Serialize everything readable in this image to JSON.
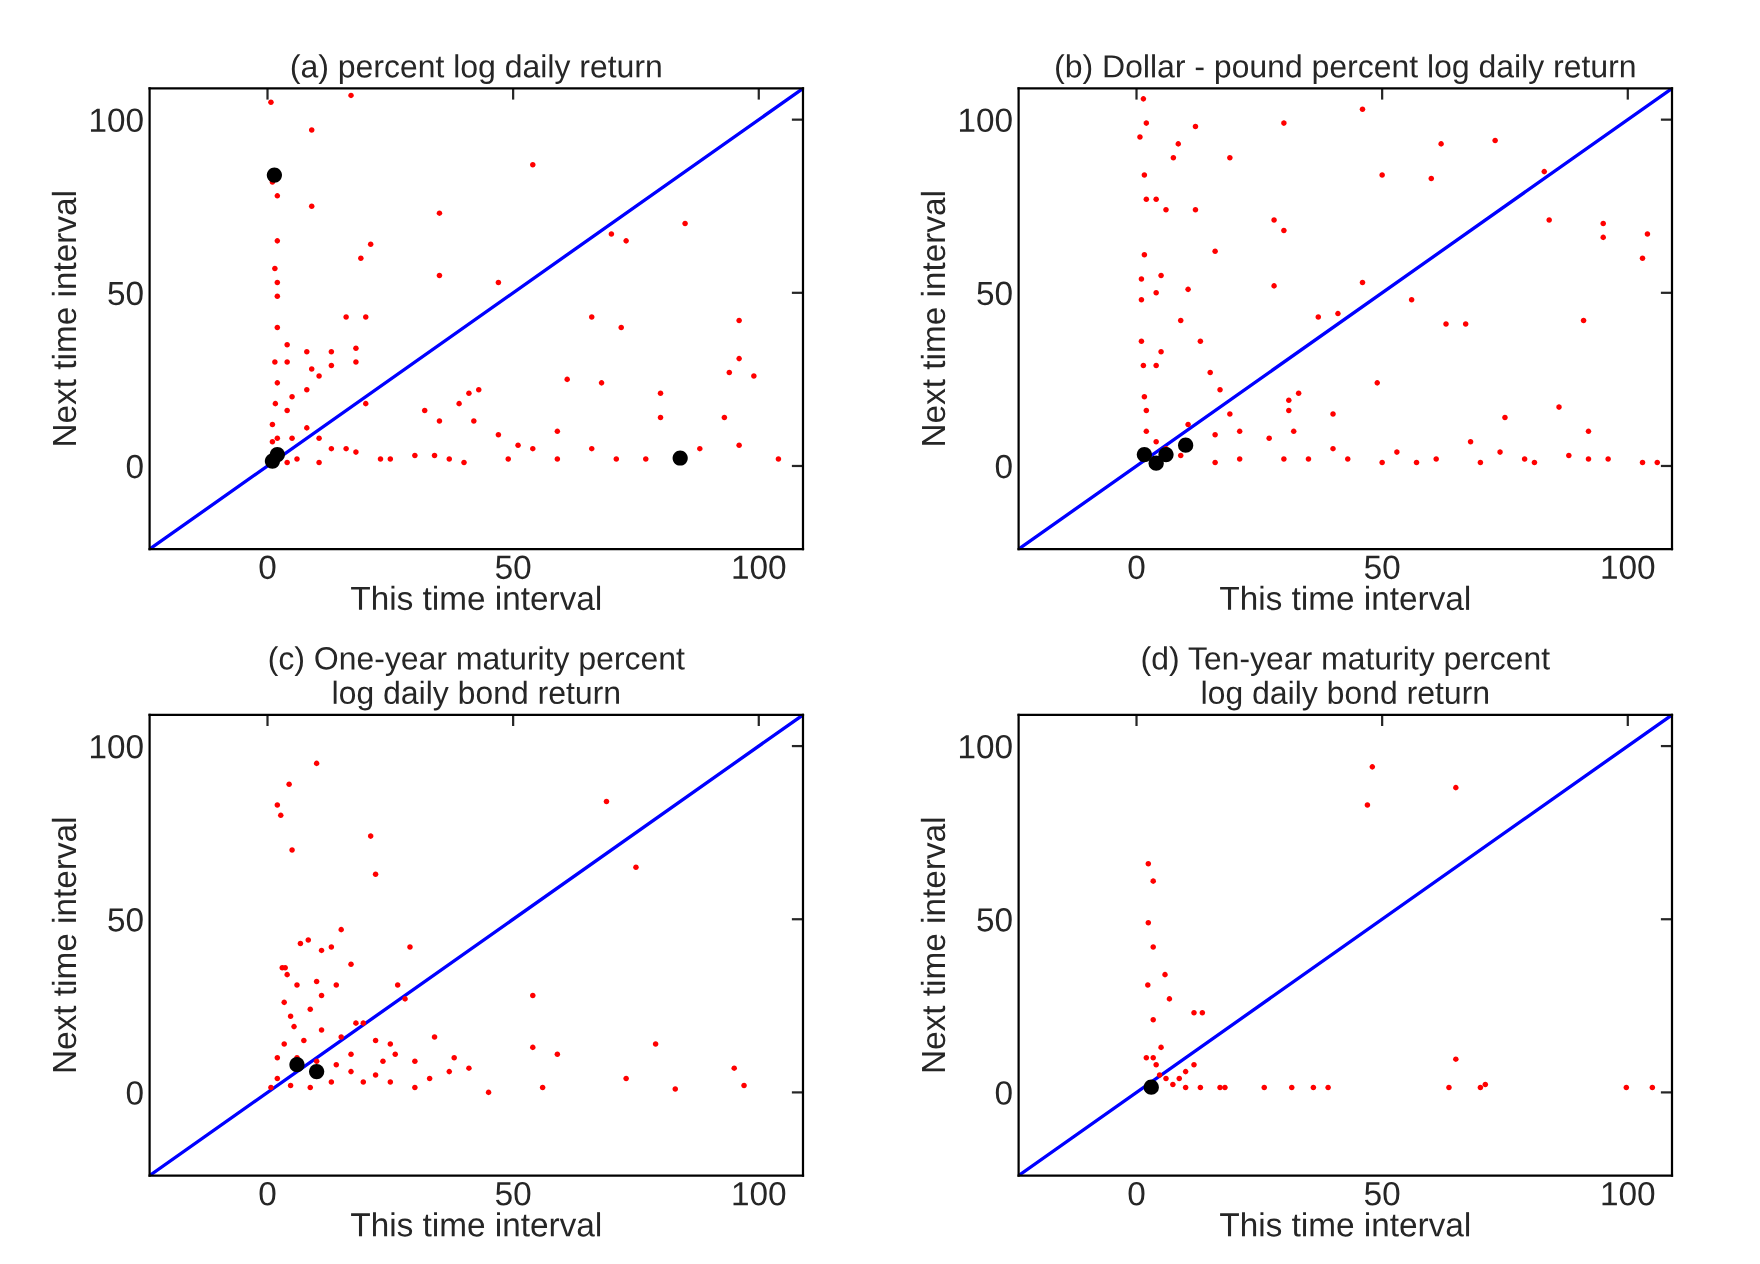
{
  "chart_data": [
    {
      "type": "scatter",
      "title": "(a) percent log daily return",
      "xlabel": "This time interval",
      "ylabel": "Next time interval",
      "xlim": [
        -24,
        109
      ],
      "ylim": [
        -24,
        109
      ],
      "xticks": [
        0,
        50,
        100
      ],
      "yticks": [
        0,
        50,
        100
      ],
      "grid": false,
      "series": [
        {
          "color": "#ff0000",
          "marker": "circle",
          "x": [
            0.7,
            17,
            9,
            54,
            9,
            35,
            85,
            73,
            70,
            21,
            19,
            35,
            47,
            1.5,
            2,
            2,
            1,
            16,
            20,
            66,
            72,
            96,
            96,
            94,
            99,
            68,
            61,
            80,
            80,
            93,
            96,
            104,
            88,
            77,
            71,
            66,
            59,
            59,
            54,
            51,
            47,
            43,
            41,
            39,
            42,
            35,
            32,
            20,
            18,
            18,
            13,
            8,
            4,
            4,
            2,
            2,
            1.5,
            2,
            1.6,
            1,
            2,
            5,
            8,
            10.5,
            13,
            16,
            18,
            23,
            25,
            30,
            34,
            37,
            40,
            49,
            10.5,
            6,
            4,
            1,
            4,
            5,
            8,
            10.5,
            13,
            2,
            9
          ],
          "values": [
            105,
            107,
            97,
            87,
            75,
            73,
            70,
            65,
            67,
            64,
            60,
            55,
            53,
            57,
            65,
            78,
            82,
            43,
            43,
            43,
            40,
            42,
            31,
            27,
            26,
            24,
            25,
            21,
            14,
            14,
            6,
            2,
            5,
            2,
            2,
            5,
            10,
            2,
            5,
            6,
            9,
            22,
            21,
            18,
            13,
            13,
            16,
            18,
            30,
            34,
            33,
            33,
            30,
            35,
            40,
            49,
            30,
            24,
            18,
            12,
            8,
            8,
            11,
            8,
            5,
            5,
            4,
            2,
            2,
            3,
            3,
            2,
            1,
            2,
            1,
            2,
            1,
            7,
            16,
            20,
            22,
            26,
            29,
            53,
            28
          ]
        },
        {
          "color": "#000000",
          "marker": "circle",
          "x": [
            1.4,
            84,
            1,
            2
          ],
          "values": [
            84,
            2.3,
            1.4,
            3.3
          ]
        },
        {
          "type": "line",
          "color": "#0000ff",
          "x": [
            -24,
            109
          ],
          "values": [
            -24,
            109
          ]
        }
      ]
    },
    {
      "type": "scatter",
      "title": "(b) Dollar - pound percent log daily return",
      "xlabel": "This time interval",
      "ylabel": "Next time interval",
      "xlim": [
        -24,
        109
      ],
      "ylim": [
        -24,
        109
      ],
      "xticks": [
        0,
        50,
        100
      ],
      "yticks": [
        0,
        50,
        100
      ],
      "grid": false,
      "series": [
        {
          "color": "#ff0000",
          "marker": "circle",
          "x": [
            1.4,
            46,
            30,
            2,
            12,
            0.7,
            8.5,
            62,
            73,
            19,
            7.5,
            50,
            60,
            83,
            1.6,
            2,
            4,
            12,
            6,
            84,
            95,
            95,
            104,
            103,
            28,
            30,
            16,
            1.6,
            1,
            5,
            28,
            46,
            10.5,
            56,
            1,
            4,
            9,
            37,
            41,
            63,
            67,
            91,
            13,
            1,
            5,
            1.4,
            4,
            15,
            17,
            49,
            31,
            33,
            31,
            32,
            40,
            86,
            75,
            92,
            19,
            16,
            21,
            27,
            30,
            35,
            40,
            43,
            50,
            53,
            57,
            61,
            68,
            70,
            74,
            79,
            81,
            88,
            92,
            96,
            103,
            106,
            21,
            16,
            2,
            2,
            4,
            6,
            9,
            1.6,
            10.5
          ],
          "values": [
            106,
            103,
            99,
            99,
            98,
            95,
            93,
            93,
            94,
            89,
            89,
            84,
            83,
            85,
            84,
            77,
            77,
            74,
            74,
            71,
            70,
            66,
            67,
            60,
            71,
            68,
            62,
            61,
            54,
            55,
            52,
            53,
            51,
            48,
            48,
            50,
            42,
            43,
            44,
            41,
            41,
            42,
            36,
            36,
            33,
            29,
            29,
            27,
            22,
            24,
            19,
            21,
            16,
            10,
            15,
            17,
            14,
            10,
            15,
            9,
            10,
            8,
            2,
            2,
            5,
            2,
            1,
            4,
            1,
            2,
            7,
            1,
            4,
            2,
            1,
            3,
            2,
            2,
            1,
            1,
            2,
            1,
            16,
            10,
            7,
            5,
            3,
            20,
            12
          ]
        },
        {
          "color": "#000000",
          "marker": "circle",
          "x": [
            1.6,
            4,
            6,
            10
          ],
          "values": [
            3.3,
            0.8,
            3.3,
            6
          ]
        },
        {
          "type": "line",
          "color": "#0000ff",
          "x": [
            -24,
            109
          ],
          "values": [
            -24,
            109
          ]
        }
      ]
    },
    {
      "type": "scatter",
      "title": "(c) One-year maturity percent\nlog daily bond return",
      "xlabel": "This time interval",
      "ylabel": "Next time interval",
      "xlim": [
        -24,
        109
      ],
      "ylim": [
        -24,
        109
      ],
      "xticks": [
        0,
        50,
        100
      ],
      "yticks": [
        0,
        50,
        100
      ],
      "grid": false,
      "series": [
        {
          "color": "#ff0000",
          "marker": "circle",
          "x": [
            10,
            4.4,
            2,
            2.7,
            5,
            21,
            22,
            69,
            75,
            4,
            3.6,
            6.7,
            8.3,
            15,
            13,
            11,
            29,
            17,
            3,
            6,
            10,
            14,
            26.5,
            28,
            54,
            34,
            18,
            19.5,
            22,
            25,
            26,
            30,
            33,
            30,
            37,
            38,
            41,
            45,
            54,
            59,
            56,
            79,
            73,
            83,
            95,
            97,
            3.4,
            4.7,
            8.7,
            11,
            3.4,
            7.4,
            2,
            6,
            10,
            14,
            17,
            2,
            4.7,
            8.7,
            13,
            22,
            19.5,
            25,
            0.7,
            17,
            23.5,
            15,
            11,
            5.4
          ],
          "values": [
            95,
            89,
            83,
            80,
            70,
            74,
            63,
            84,
            65,
            34,
            36,
            43,
            44,
            47,
            42,
            41,
            42,
            37,
            36,
            31,
            32,
            31,
            31,
            27,
            28,
            16,
            20,
            20,
            15,
            14,
            11,
            9,
            4,
            1.4,
            6,
            10,
            7,
            0,
            13,
            11,
            1.4,
            14,
            4,
            1,
            7,
            2,
            26,
            22,
            24,
            18,
            14,
            15,
            10,
            10,
            9,
            8,
            6,
            4,
            2,
            1.4,
            3,
            5,
            3,
            3,
            1.4,
            11,
            9,
            16,
            28,
            19
          ]
        },
        {
          "color": "#000000",
          "marker": "circle",
          "x": [
            6,
            10
          ],
          "values": [
            8,
            6
          ]
        },
        {
          "type": "line",
          "color": "#0000ff",
          "x": [
            -24,
            109
          ],
          "values": [
            -24,
            109
          ]
        }
      ]
    },
    {
      "type": "scatter",
      "title": "(d) Ten-year maturity percent\nlog daily bond return",
      "xlabel": "This time interval",
      "ylabel": "Next time interval",
      "xlim": [
        -24,
        109
      ],
      "ylim": [
        -24,
        109
      ],
      "xticks": [
        0,
        50,
        100
      ],
      "yticks": [
        0,
        50,
        100
      ],
      "grid": false,
      "series": [
        {
          "color": "#ff0000",
          "marker": "circle",
          "x": [
            48,
            47,
            65,
            2.4,
            3.4,
            2.4,
            3.4,
            2.3,
            5.8,
            6.7,
            3.4,
            11.7,
            13.4,
            5,
            2,
            3.4,
            4,
            11.7,
            10,
            7.4,
            10,
            13,
            17,
            18,
            26,
            31.6,
            36,
            39,
            63.6,
            70,
            71,
            65,
            99.7,
            105,
            4.7,
            6,
            8.7
          ],
          "values": [
            94,
            83,
            88,
            66,
            61,
            49,
            42,
            31,
            34,
            27,
            21,
            23,
            23,
            13,
            10,
            10,
            8,
            8,
            6,
            2.3,
            1.4,
            1.4,
            1.4,
            1.4,
            1.4,
            1.4,
            1.4,
            1.4,
            1.4,
            1.4,
            2.3,
            9.6,
            1.4,
            1.4,
            5,
            4,
            4
          ]
        },
        {
          "color": "#000000",
          "marker": "circle",
          "x": [
            3
          ],
          "values": [
            1.5
          ]
        },
        {
          "type": "line",
          "color": "#0000ff",
          "x": [
            -24,
            109
          ],
          "values": [
            -24,
            109
          ]
        }
      ]
    }
  ]
}
